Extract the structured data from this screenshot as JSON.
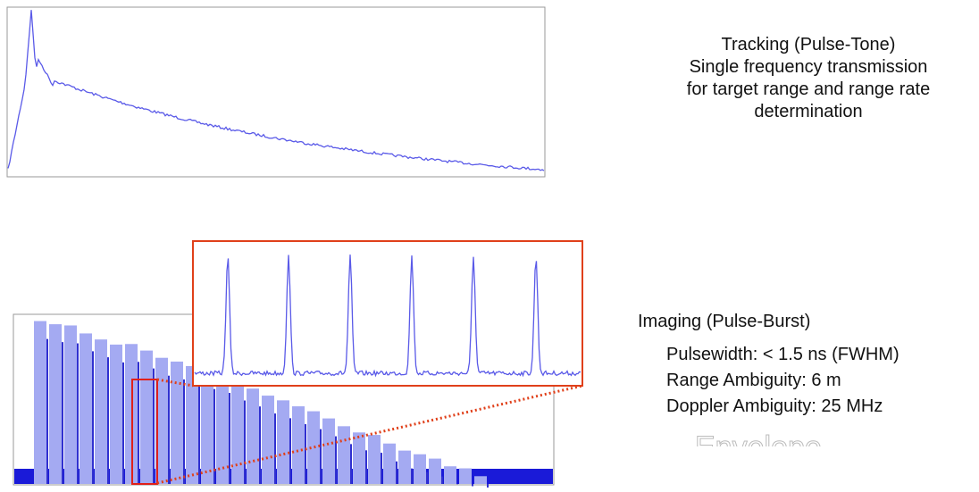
{
  "top_caption": {
    "lines": [
      "Tracking (Pulse-Tone)",
      "Single frequency transmission",
      "for target range and range rate",
      "determination"
    ]
  },
  "bottom_caption": {
    "title": "Imaging (Pulse-Burst)",
    "items": [
      "Pulsewidth: < 1.5 ns (FWHM)",
      "Range Ambiguity: 6 m",
      "Doppler Ambiguity: 25 MHz"
    ]
  },
  "overlay_text": "Envelope"
}
